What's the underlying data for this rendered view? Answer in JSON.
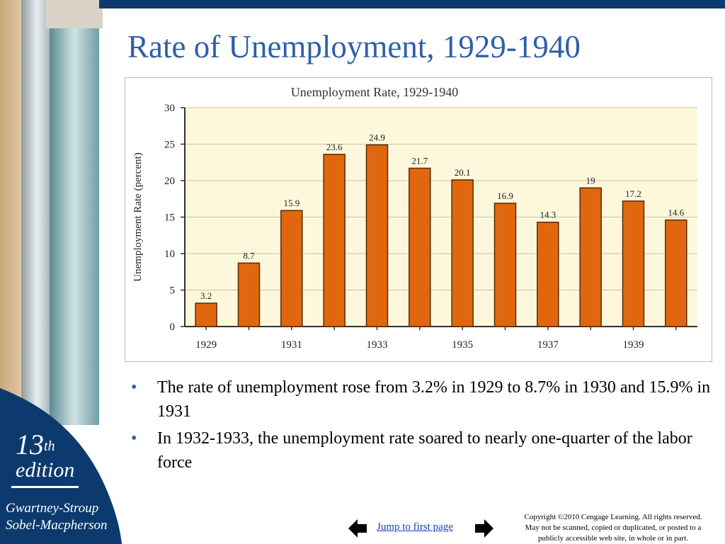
{
  "slide": {
    "title": "Rate of Unemployment, 1929-1940"
  },
  "sidebar": {
    "edition_number": "13",
    "edition_suffix": "th",
    "edition_word": "edition",
    "authors": [
      "Gwartney-Stroup",
      "Sobel-Macpherson"
    ]
  },
  "chart_data": {
    "type": "bar",
    "title": "Unemployment Rate, 1929-1940",
    "ylabel": "Unemployment Rate (percent)",
    "xlabel": "",
    "categories": [
      "1929",
      "1930",
      "1931",
      "1932",
      "1933",
      "1934",
      "1935",
      "1936",
      "1937",
      "1938",
      "1939",
      "1940"
    ],
    "values": [
      3.2,
      8.7,
      15.9,
      23.6,
      24.9,
      21.7,
      20.1,
      16.9,
      14.3,
      19,
      17.2,
      14.6
    ],
    "data_labels": [
      "3.2",
      "8.7",
      "15.9",
      "23.6",
      "24.9",
      "21.7",
      "20.1",
      "16.9",
      "14.3",
      "19",
      "17.2",
      "14.6"
    ],
    "x_tick_labels": [
      "1929",
      "1931",
      "1933",
      "1935",
      "1937",
      "1939"
    ],
    "y_ticks": [
      "0",
      "5",
      "10",
      "15",
      "20",
      "25",
      "30"
    ],
    "ylim": [
      0,
      30
    ],
    "grid": true,
    "bar_color": "#e0670e",
    "plot_background": "#fdf8dc"
  },
  "bullets": [
    "The rate of unemployment rose from 3.2% in 1929 to 8.7% in 1930 and 15.9% in 1931",
    "In 1932-1933, the unemployment rate soared to nearly one-quarter of the labor force"
  ],
  "footer": {
    "jump_link": "Jump to first page",
    "copyright_lines": [
      "Copyright ©2010 Cengage Learning. All rights reserved.",
      "May not be scanned, copied or duplicated, or posted to a",
      "publicly accessible web site, in whole or in part."
    ],
    "prev_icon": "arrow-left-icon",
    "next_icon": "arrow-right-icon"
  },
  "colors": {
    "title": "#2f5fa8",
    "sidebar_blue": "#0c3a6e",
    "link": "#1a3ec4"
  }
}
